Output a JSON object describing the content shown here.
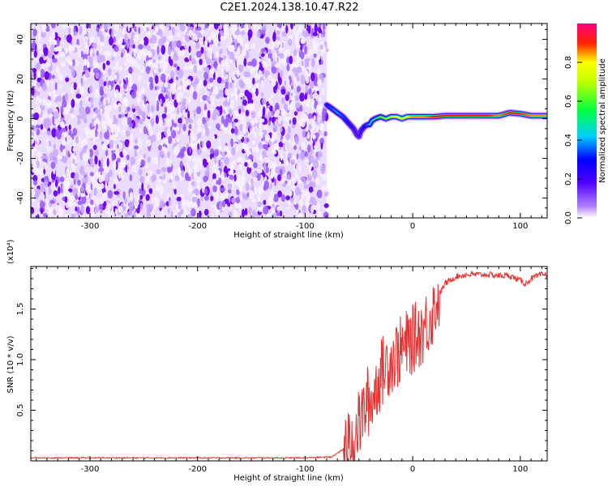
{
  "title": "C2E1.2024.138.10.47.R22",
  "chart_data": [
    {
      "type": "heatmap",
      "xlabel": "Height of straight line (km)",
      "ylabel": "Frequency (Hz)",
      "xlim": [
        -355,
        125
      ],
      "ylim": [
        -50,
        48
      ],
      "xticks": [
        -300,
        -200,
        -100,
        0,
        100
      ],
      "yticks": [
        -40,
        -20,
        0,
        20,
        40
      ],
      "noise_region_x": [
        -355,
        -80
      ],
      "colorbar": {
        "label": "Normalized spectral amplitude",
        "range": [
          0,
          1
        ],
        "ticks": [
          0.0,
          0.2,
          0.4,
          0.6,
          0.8
        ],
        "colormap": [
          "#ffffff",
          "#8000ff",
          "#0000ff",
          "#00ffff",
          "#00ff00",
          "#ffff00",
          "#ff0000",
          "#ff0080"
        ]
      },
      "ridge": {
        "x": [
          -80,
          -75,
          -70,
          -65,
          -60,
          -55,
          -52,
          -50,
          -48,
          -45,
          -42,
          -40,
          -38,
          -35,
          -30,
          -25,
          -20,
          -15,
          -10,
          -5,
          0,
          10,
          20,
          30,
          40,
          50,
          60,
          70,
          80,
          90,
          100,
          110,
          125
        ],
        "y": [
          7,
          5,
          3,
          1,
          -2,
          -5,
          -8,
          -9,
          -6,
          -4,
          -3,
          -3,
          -1,
          0,
          1,
          0,
          1,
          1,
          0,
          1,
          1,
          1,
          1,
          1.5,
          1.5,
          1.5,
          1.5,
          1.5,
          1.5,
          3,
          2.5,
          1.5,
          1.5
        ],
        "amplitude": [
          0.3,
          0.35,
          0.4,
          0.35,
          0.3,
          0.25,
          0.2,
          0.2,
          0.25,
          0.3,
          0.35,
          0.4,
          0.45,
          0.5,
          0.6,
          0.65,
          0.7,
          0.75,
          0.8,
          0.8,
          0.85,
          0.85,
          0.9,
          0.9,
          0.9,
          0.9,
          0.9,
          0.9,
          0.85,
          0.9,
          0.9,
          0.85,
          0.85
        ]
      }
    },
    {
      "type": "line",
      "xlabel": "Height of straight line (km)",
      "ylabel": "SNR (10 * v/v)",
      "y_multiplier": "(x10⁴)",
      "xlim": [
        -355,
        125
      ],
      "ylim": [
        0,
        19200
      ],
      "xticks": [
        -300,
        -200,
        -100,
        0,
        100
      ],
      "yticks": [
        5000,
        10000,
        15000
      ],
      "ytick_labels": [
        "0.5",
        "1.0",
        "1.5"
      ],
      "series": [
        {
          "color": "#e33030",
          "x": [
            -355,
            -300,
            -200,
            -100,
            -75,
            -60,
            -55,
            -50,
            -45,
            -42,
            -40,
            -38,
            -35,
            -30,
            -25,
            -20,
            -15,
            -10,
            -5,
            0,
            5,
            10,
            15,
            20,
            25,
            30,
            40,
            50,
            60,
            70,
            80,
            90,
            100,
            105,
            110,
            115,
            120,
            125
          ],
          "y": [
            300,
            300,
            300,
            300,
            400,
            1500,
            2500,
            3500,
            5000,
            6000,
            5500,
            6000,
            7000,
            8500,
            9500,
            10000,
            10500,
            11000,
            11500,
            12000,
            12500,
            13000,
            14000,
            15000,
            16500,
            17500,
            18200,
            18400,
            18400,
            18400,
            18300,
            18300,
            17800,
            17500,
            18000,
            18200,
            18400,
            18400
          ]
        }
      ]
    }
  ]
}
